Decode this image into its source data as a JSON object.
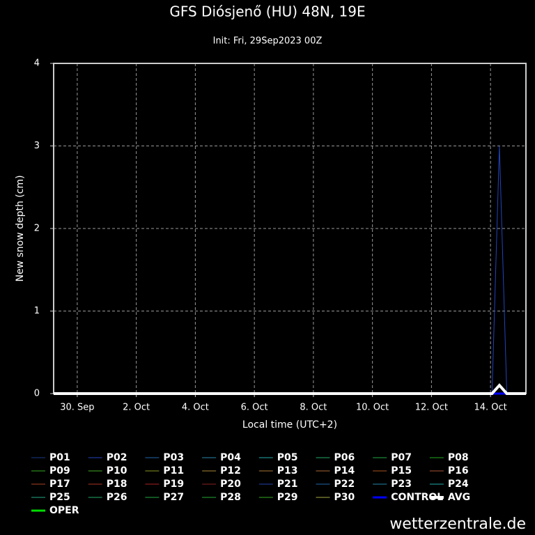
{
  "chart_data": {
    "type": "line",
    "title": "GFS Diósjenő (HU) 48N, 19E",
    "subtitle": "Init: Fri, 29Sep2023 00Z",
    "xlabel": "Local time (UTC+2)",
    "ylabel": "New snow depth (cm)",
    "source": "wetterzentrale.de",
    "xlim": [
      0.2,
      16.2
    ],
    "xticks": [
      {
        "value": 1,
        "label": "30. Sep"
      },
      {
        "value": 3,
        "label": "2. Oct"
      },
      {
        "value": 5,
        "label": "4. Oct"
      },
      {
        "value": 7,
        "label": "6. Oct"
      },
      {
        "value": 9,
        "label": "8. Oct"
      },
      {
        "value": 11,
        "label": "10. Oct"
      },
      {
        "value": 13,
        "label": "12. Oct"
      },
      {
        "value": 15,
        "label": "14. Oct"
      }
    ],
    "ylim": [
      0,
      4
    ],
    "yticks": [
      0,
      1,
      2,
      3,
      4
    ],
    "grid": true,
    "x": [
      0.2,
      15.05,
      15.3,
      15.55,
      16.2
    ],
    "series": [
      {
        "name": "P01",
        "color": "#1a3a8a",
        "values": [
          0,
          0,
          0,
          0,
          0
        ]
      },
      {
        "name": "P02",
        "color": "#2244bb",
        "values": [
          0,
          0,
          3,
          0,
          0
        ]
      },
      {
        "name": "P03",
        "color": "#2266aa",
        "values": [
          0,
          0,
          0,
          0,
          0
        ]
      },
      {
        "name": "P04",
        "color": "#2a88aa",
        "values": [
          0,
          0,
          0,
          0,
          0
        ]
      },
      {
        "name": "P05",
        "color": "#22aaaa",
        "values": [
          0,
          0,
          0,
          0,
          0
        ]
      },
      {
        "name": "P06",
        "color": "#22aa66",
        "values": [
          0,
          0,
          0,
          0,
          0
        ]
      },
      {
        "name": "P07",
        "color": "#22aa44",
        "values": [
          0,
          0,
          0,
          0,
          0
        ]
      },
      {
        "name": "P08",
        "color": "#22aa22",
        "values": [
          0,
          0,
          0,
          0,
          0
        ]
      },
      {
        "name": "P09",
        "color": "#33aa22",
        "values": [
          0,
          0,
          0,
          0,
          0
        ]
      },
      {
        "name": "P10",
        "color": "#44aa22",
        "values": [
          0,
          0,
          0,
          0,
          0
        ]
      },
      {
        "name": "P11",
        "color": "#889922",
        "values": [
          0,
          0,
          0,
          0,
          0
        ]
      },
      {
        "name": "P12",
        "color": "#aa8833",
        "values": [
          0,
          0,
          0,
          0,
          0
        ]
      },
      {
        "name": "P13",
        "color": "#aa7733",
        "values": [
          0,
          0,
          0,
          0,
          0
        ]
      },
      {
        "name": "P14",
        "color": "#aa6633",
        "values": [
          0,
          0,
          0,
          0,
          0
        ]
      },
      {
        "name": "P15",
        "color": "#aa5522",
        "values": [
          0,
          0,
          0,
          0,
          0
        ]
      },
      {
        "name": "P16",
        "color": "#aa5533",
        "values": [
          0,
          0,
          0,
          0,
          0
        ]
      },
      {
        "name": "P17",
        "color": "#aa4422",
        "values": [
          0,
          0,
          0,
          0,
          0
        ]
      },
      {
        "name": "P18",
        "color": "#aa3322",
        "values": [
          0,
          0,
          0,
          0,
          0
        ]
      },
      {
        "name": "P19",
        "color": "#aa2222",
        "values": [
          0,
          0,
          0,
          0,
          0
        ]
      },
      {
        "name": "P20",
        "color": "#882222",
        "values": [
          0,
          0,
          0,
          0,
          0
        ]
      },
      {
        "name": "P21",
        "color": "#2244aa",
        "values": [
          0,
          0,
          0,
          0,
          0
        ]
      },
      {
        "name": "P22",
        "color": "#2266aa",
        "values": [
          0,
          0,
          0,
          0,
          0
        ]
      },
      {
        "name": "P23",
        "color": "#2288aa",
        "values": [
          0,
          0,
          0,
          0,
          0
        ]
      },
      {
        "name": "P24",
        "color": "#22aaaa",
        "values": [
          0,
          0,
          0,
          0,
          0
        ]
      },
      {
        "name": "P25",
        "color": "#22aa88",
        "values": [
          0,
          0,
          0,
          0,
          0
        ]
      },
      {
        "name": "P26",
        "color": "#22aa66",
        "values": [
          0,
          0,
          0,
          0,
          0
        ]
      },
      {
        "name": "P27",
        "color": "#22aa44",
        "values": [
          0,
          0,
          0,
          0,
          0
        ]
      },
      {
        "name": "P28",
        "color": "#22aa33",
        "values": [
          0,
          0,
          0,
          0,
          0
        ]
      },
      {
        "name": "P29",
        "color": "#33aa22",
        "values": [
          0,
          0,
          0,
          0,
          0
        ]
      },
      {
        "name": "P30",
        "color": "#aaaa44",
        "values": [
          0,
          0,
          0,
          0,
          0
        ]
      },
      {
        "name": "CONTROL",
        "color": "#0000ff",
        "line_width": 3,
        "values": [
          0,
          0,
          0,
          0,
          0
        ]
      },
      {
        "name": "AVG",
        "color": "#ffffff",
        "line_width": 4,
        "values": [
          0,
          0,
          0.1,
          0,
          0
        ]
      },
      {
        "name": "OPER",
        "color": "#00dd00",
        "line_width": 3,
        "values": [
          0,
          0,
          0,
          0,
          0
        ]
      }
    ]
  }
}
